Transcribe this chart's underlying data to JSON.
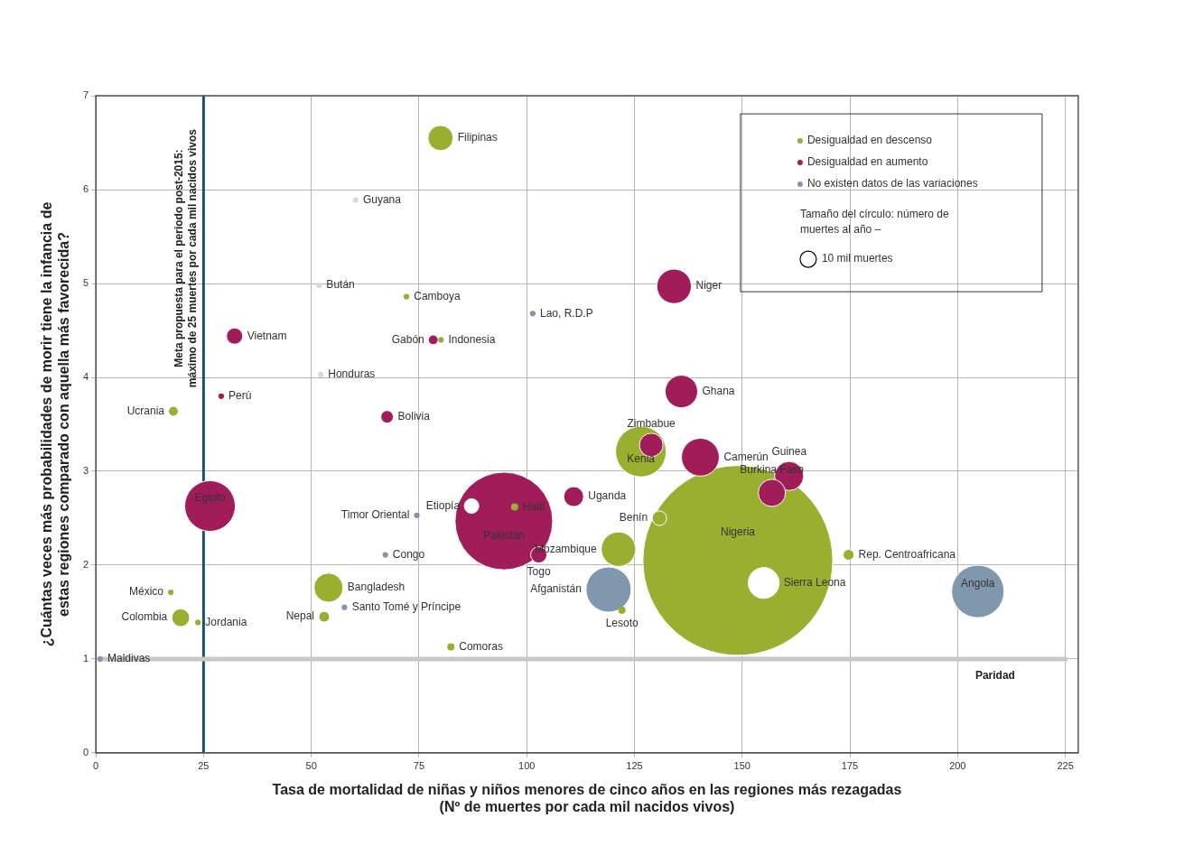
{
  "chart_data": {
    "type": "bubble",
    "xlabel": "Tasa de mortalidad de niñas y niños menores de cinco años en las regiones más rezagadas\n(Nº de muertes por cada mil nacidos vivos)",
    "ylabel": "¿Cuántas veces más probabilidades de morir tiene la infancia de\nestas regiones comparado con aquella más favorecida?",
    "legend_title": "Tamaño del círculo: número de\nmuertes al año –",
    "size_legend": [
      {
        "value": 10,
        "label": "10 mil muertes"
      }
    ],
    "xlim": [
      0,
      228
    ],
    "xticks": [
      0,
      25,
      50,
      75,
      100,
      125,
      150,
      175,
      200,
      225
    ],
    "ylim": [
      0,
      7
    ],
    "yticks": [
      0,
      1,
      2,
      3,
      4,
      5,
      6,
      7
    ],
    "grid": true,
    "legend": "top right",
    "series": [
      {
        "name": "Desigualdad en descenso",
        "color": "#9aae2f",
        "x": [
          80,
          72.1,
          80.1,
          18,
          126.5,
          97.2,
          130.8,
          121.3,
          149,
          174.7,
          122.1,
          54,
          53,
          17.4,
          19.7,
          23.7,
          82.4
        ],
        "values": [
          6.55,
          4.86,
          4.4,
          3.64,
          3.21,
          2.62,
          2.5,
          2.17,
          2.05,
          2.11,
          1.52,
          1.76,
          1.45,
          1.71,
          1.44,
          1.39,
          1.13
        ],
        "sizes": [
          24,
          1.2,
          1.2,
          3,
          97,
          2,
          8,
          45,
          1360,
          4.4,
          2,
          32,
          4.4,
          1.2,
          12,
          1.2,
          2
        ]
      },
      {
        "name": "Desigualdad en aumento",
        "color": "#a01d5a",
        "x": [
          32.2,
          78.3,
          134.2,
          29.1,
          67.6,
          135.9,
          128.9,
          140.3,
          160.9,
          156.9,
          26.5,
          94.7,
          110.9,
          102.8
        ],
        "values": [
          4.44,
          4.4,
          4.97,
          3.8,
          3.58,
          3.85,
          3.28,
          3.15,
          2.95,
          2.77,
          2.63,
          2.47,
          2.73,
          2.11
        ],
        "sizes": [
          10,
          3,
          45,
          1.2,
          6,
          40,
          21,
          54,
          32,
          28,
          97,
          360,
          15,
          10
        ]
      },
      {
        "name": "No existen datos de las variaciones",
        "color": "#8098ad",
        "x": [
          101.4,
          74.5,
          67.2,
          204.7,
          119,
          57.7,
          1
        ],
        "values": [
          4.68,
          2.53,
          2.11,
          1.72,
          1.74,
          1.55,
          1.0
        ],
        "sizes": [
          1.2,
          1.2,
          1.2,
          104,
          77,
          1.2,
          1.2
        ]
      },
      {
        "color": "#d9d9d9",
        "x": [
          60.3,
          51.8,
          52.2
        ],
        "values": [
          5.89,
          4.98,
          4.03
        ],
        "sizes": [
          1.2,
          1.2,
          1.2
        ]
      },
      {
        "color": "#ffffff",
        "x": [
          87.2,
          155
        ],
        "values": [
          2.63,
          1.81
        ],
        "sizes": [
          8,
          36
        ]
      }
    ],
    "ref_lines": [
      {
        "axis": "x",
        "value": 25,
        "color": "#1f4e6e",
        "label": "Meta propuesta para el periodo post-2015:\nmáximo de 25 muertes por cada mil nacidos vivos"
      },
      {
        "axis": "y",
        "value": 1,
        "color": "#c8c8c8",
        "label": "Paridad"
      }
    ],
    "annotations": [
      {
        "text": "Filipinas",
        "x": 80,
        "y": 6.55
      },
      {
        "text": "Guyana",
        "x": 60.3,
        "y": 5.89
      },
      {
        "text": "Bután",
        "x": 51.8,
        "y": 4.98
      },
      {
        "text": "Camboya",
        "x": 72.1,
        "y": 4.86
      },
      {
        "text": "Vietnam",
        "x": 32.2,
        "y": 4.44
      },
      {
        "text": "Indonesia",
        "x": 80.1,
        "y": 4.4
      },
      {
        "text": "Gabón",
        "x": 78.3,
        "y": 4.4
      },
      {
        "text": "Lao, R.D.P",
        "x": 101.4,
        "y": 4.68
      },
      {
        "text": "Niger",
        "x": 134.2,
        "y": 4.97
      },
      {
        "text": "Honduras",
        "x": 52.2,
        "y": 4.03
      },
      {
        "text": "Perú",
        "x": 29.1,
        "y": 3.8
      },
      {
        "text": "Ucrania",
        "x": 18,
        "y": 3.64
      },
      {
        "text": "Bolivia",
        "x": 67.6,
        "y": 3.58
      },
      {
        "text": "Ghana",
        "x": 135.9,
        "y": 3.85
      },
      {
        "text": "Zimbabue",
        "x": 128.9,
        "y": 3.28
      },
      {
        "text": "Kenia",
        "x": 126.5,
        "y": 3.21
      },
      {
        "text": "Camerún",
        "x": 140.3,
        "y": 3.15
      },
      {
        "text": "Guinea",
        "x": 160.9,
        "y": 2.95
      },
      {
        "text": "Burkina Faso",
        "x": 156.9,
        "y": 2.77
      },
      {
        "text": "Egipto",
        "x": 26.5,
        "y": 2.63
      },
      {
        "text": "Etiopía",
        "x": 87.2,
        "y": 2.63
      },
      {
        "text": "Haití",
        "x": 97.2,
        "y": 2.62
      },
      {
        "text": "Timor Oriental",
        "x": 74.5,
        "y": 2.53
      },
      {
        "text": "Uganda",
        "x": 110.9,
        "y": 2.73
      },
      {
        "text": "Benín",
        "x": 130.8,
        "y": 2.5
      },
      {
        "text": "Pakistán",
        "x": 94.7,
        "y": 2.47
      },
      {
        "text": "Mozambique",
        "x": 121.3,
        "y": 2.17
      },
      {
        "text": "Congo",
        "x": 67.2,
        "y": 2.11
      },
      {
        "text": "Togo",
        "x": 102.8,
        "y": 2.11
      },
      {
        "text": "Nigeria",
        "x": 149,
        "y": 2.05
      },
      {
        "text": "Rep. Centroafricana",
        "x": 174.7,
        "y": 2.11
      },
      {
        "text": "Bangladesh",
        "x": 54,
        "y": 1.76
      },
      {
        "text": "México",
        "x": 17.4,
        "y": 1.71
      },
      {
        "text": "Afganistán",
        "x": 119,
        "y": 1.74
      },
      {
        "text": "Sierra Leona",
        "x": 155,
        "y": 1.81
      },
      {
        "text": "Angola",
        "x": 204.7,
        "y": 1.72
      },
      {
        "text": "Santo Tomé y Príncipe",
        "x": 57.7,
        "y": 1.55
      },
      {
        "text": "Lesoto",
        "x": 122.1,
        "y": 1.52
      },
      {
        "text": "Colombia",
        "x": 19.7,
        "y": 1.44
      },
      {
        "text": "Nepal",
        "x": 53,
        "y": 1.45
      },
      {
        "text": "Jordania",
        "x": 23.7,
        "y": 1.39
      },
      {
        "text": "Maldivas",
        "x": 1,
        "y": 1.0
      },
      {
        "text": "Comoras",
        "x": 82.4,
        "y": 1.13
      }
    ]
  }
}
